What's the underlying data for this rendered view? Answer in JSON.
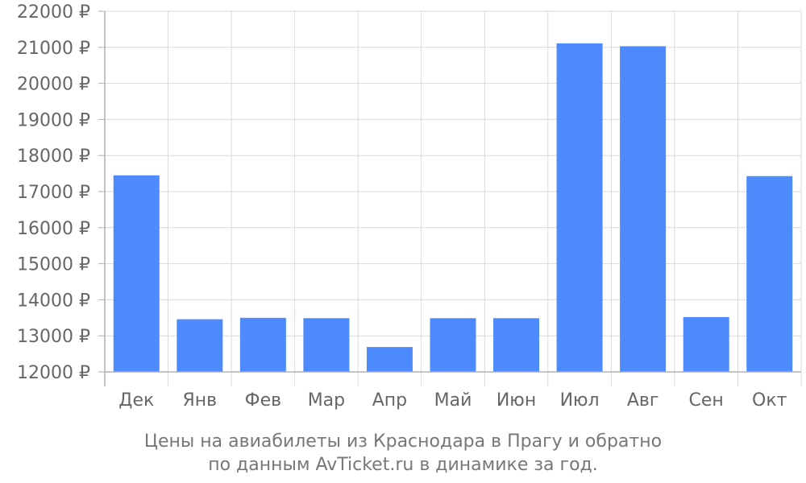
{
  "chart_data": {
    "type": "bar",
    "categories": [
      "Дек",
      "Янв",
      "Фев",
      "Мар",
      "Апр",
      "Май",
      "Июн",
      "Июл",
      "Авг",
      "Сен",
      "Окт"
    ],
    "values": [
      17450,
      13460,
      13500,
      13490,
      12690,
      13490,
      13490,
      21110,
      21030,
      13520,
      17430
    ],
    "ylim": [
      12000,
      22000
    ],
    "yticks": [
      12000,
      13000,
      14000,
      15000,
      16000,
      17000,
      18000,
      19000,
      20000,
      21000,
      22000
    ],
    "ytick_suffix": " ₽",
    "title": "",
    "xlabel": "",
    "ylabel": "",
    "grid": true,
    "bar_color": "#4d8afc"
  },
  "caption": {
    "line1": "Цены на авиабилеты из Краснодара в Прагу и обратно",
    "line2": "по данным AvTicket.ru в динамике за год."
  }
}
